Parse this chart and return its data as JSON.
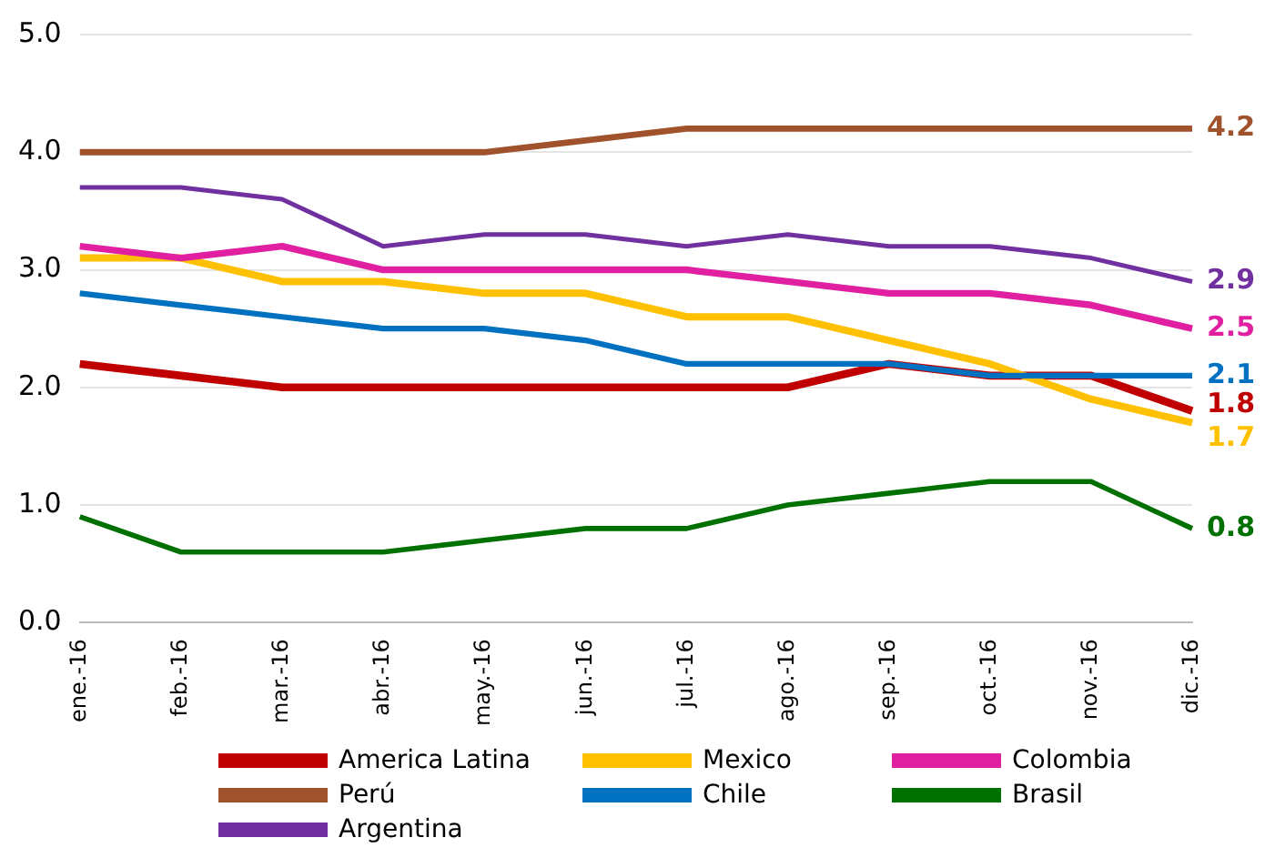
{
  "chart_data": {
    "type": "line",
    "categories": [
      "ene.-16",
      "feb.-16",
      "mar.-16",
      "abr.-16",
      "may.-16",
      "jun.-16",
      "jul.-16",
      "ago.-16",
      "sep.-16",
      "oct.-16",
      "nov.-16",
      "dic.-16"
    ],
    "series": [
      {
        "name": "America Latina",
        "color": "#c00000",
        "values": [
          2.2,
          2.1,
          2.0,
          2.0,
          2.0,
          2.0,
          2.0,
          2.0,
          2.2,
          2.1,
          2.1,
          1.8
        ],
        "value_labels": [
          null,
          null,
          null,
          null,
          null,
          null,
          null,
          null,
          null,
          null,
          null,
          "1.8"
        ]
      },
      {
        "name": "Mexico",
        "color": "#ffc000",
        "values": [
          3.1,
          3.1,
          2.9,
          2.9,
          2.8,
          2.8,
          2.6,
          2.6,
          2.4,
          2.2,
          1.9,
          1.7
        ],
        "value_labels": [
          null,
          null,
          null,
          null,
          null,
          null,
          null,
          null,
          null,
          null,
          null,
          "1.7"
        ]
      },
      {
        "name": "Colombia",
        "color": "#e020a0",
        "values": [
          3.2,
          3.1,
          3.2,
          3.0,
          3.0,
          3.0,
          3.0,
          2.9,
          2.8,
          2.8,
          2.7,
          2.5
        ],
        "value_labels": [
          null,
          null,
          null,
          null,
          null,
          null,
          null,
          null,
          null,
          null,
          null,
          "2.5"
        ]
      },
      {
        "name": "Perú",
        "color": "#a0522d",
        "values": [
          4.0,
          4.0,
          4.0,
          4.0,
          4.0,
          4.1,
          4.2,
          4.2,
          4.2,
          4.2,
          4.2,
          4.2
        ],
        "value_labels": [
          null,
          null,
          null,
          null,
          null,
          null,
          null,
          null,
          null,
          null,
          null,
          "4.2"
        ]
      },
      {
        "name": "Chile",
        "color": "#0070c0",
        "values": [
          2.8,
          2.7,
          2.6,
          2.5,
          2.5,
          2.4,
          2.2,
          2.2,
          2.2,
          2.1,
          2.1,
          2.1
        ],
        "value_labels": [
          null,
          null,
          null,
          null,
          null,
          null,
          null,
          null,
          null,
          null,
          null,
          "2.1"
        ]
      },
      {
        "name": "Brasil",
        "color": "#007000",
        "values": [
          0.9,
          0.6,
          0.6,
          0.6,
          0.7,
          0.8,
          0.8,
          1.0,
          1.1,
          1.2,
          1.2,
          0.8
        ],
        "value_labels": [
          null,
          null,
          null,
          null,
          null,
          null,
          null,
          null,
          null,
          null,
          null,
          "0.8"
        ]
      },
      {
        "name": "Argentina",
        "color": "#7030a0",
        "values": [
          3.7,
          3.7,
          3.6,
          3.2,
          3.3,
          3.3,
          3.2,
          3.3,
          3.2,
          3.2,
          3.1,
          2.9
        ],
        "value_labels": [
          null,
          null,
          null,
          null,
          null,
          null,
          null,
          null,
          null,
          null,
          null,
          "2.9"
        ]
      }
    ],
    "ylim": [
      0,
      5
    ],
    "yticks": [
      {
        "value": 0,
        "label": "0.0"
      },
      {
        "value": 1,
        "label": "1.0"
      },
      {
        "value": 2,
        "label": "2.0"
      },
      {
        "value": 3,
        "label": "3.0"
      },
      {
        "value": 4,
        "label": "4.0"
      },
      {
        "value": 5,
        "label": "5.0"
      }
    ],
    "grid": "y",
    "legend": "bottom",
    "marker": "none",
    "line_style": "solid"
  }
}
